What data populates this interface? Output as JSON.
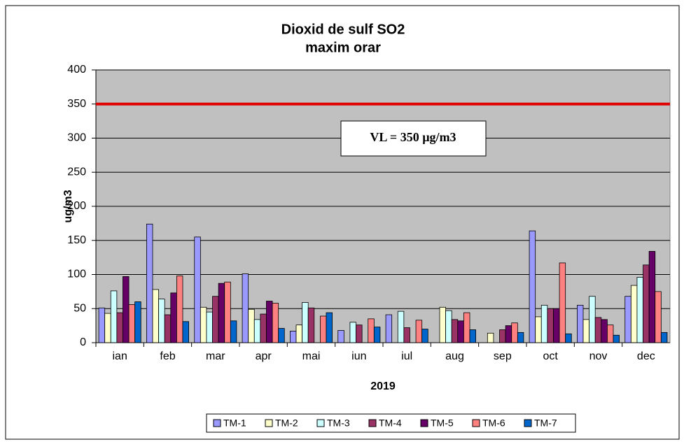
{
  "chart_data": {
    "type": "bar",
    "title": "Dioxid de sulf SO2",
    "subtitle": "maxim orar",
    "x_label": "2019",
    "y_label": "ug/m3",
    "categories": [
      "ian",
      "feb",
      "mar",
      "apr",
      "mai",
      "iun",
      "iul",
      "aug",
      "sep",
      "oct",
      "nov",
      "dec"
    ],
    "series": [
      {
        "name": "TM-1",
        "color": "#9999ff",
        "values": [
          51,
          174,
          155,
          101,
          17,
          18,
          41,
          null,
          null,
          164,
          55,
          68
        ]
      },
      {
        "name": "TM-2",
        "color": "#ffffcc",
        "values": [
          43,
          78,
          52,
          49,
          26,
          null,
          null,
          52,
          14,
          38,
          34,
          84
        ]
      },
      {
        "name": "TM-3",
        "color": "#ccffff",
        "values": [
          76,
          64,
          45,
          34,
          59,
          30,
          46,
          47,
          null,
          55,
          68,
          96
        ]
      },
      {
        "name": "TM-4",
        "color": "#993366",
        "values": [
          44,
          41,
          68,
          42,
          51,
          26,
          22,
          34,
          19,
          50,
          37,
          114
        ]
      },
      {
        "name": "TM-5",
        "color": "#660066",
        "values": [
          97,
          73,
          87,
          61,
          null,
          null,
          null,
          32,
          25,
          50,
          34,
          134
        ]
      },
      {
        "name": "TM-6",
        "color": "#ff8080",
        "values": [
          56,
          98,
          89,
          58,
          39,
          35,
          33,
          44,
          29,
          117,
          26,
          75
        ]
      },
      {
        "name": "TM-7",
        "color": "#0066cc",
        "values": [
          60,
          31,
          32,
          21,
          44,
          23,
          20,
          19,
          15,
          13,
          11,
          15
        ]
      }
    ],
    "reference_line": {
      "value": 350,
      "color": "#e00000"
    },
    "annotation": "VL = 350 µg/m3",
    "ylim": [
      0,
      400
    ],
    "yticks": [
      0,
      50,
      100,
      150,
      200,
      250,
      300,
      350,
      400
    ],
    "grid": true,
    "legend": "bottom"
  }
}
